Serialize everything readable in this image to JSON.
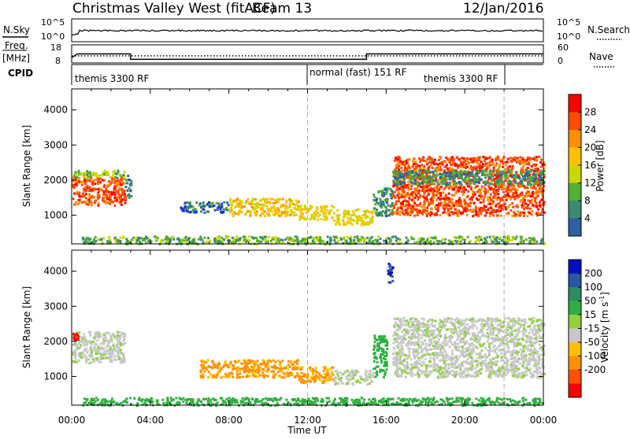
{
  "header": {
    "station": "Christmas Valley West (fitACF)",
    "beam": "Beam 13",
    "date": "12/Jan/2016"
  },
  "nsky_panel": {
    "left_label": "N.Sky",
    "left_ticks": [
      "10^5",
      "10^0"
    ],
    "right_ticks": [
      "10^5",
      "10^0"
    ],
    "right_label": "N.Search"
  },
  "freq_panel": {
    "left_label_line1": "Freq.",
    "left_label_line2": "[MHz]",
    "left_ticks": [
      "18",
      "8"
    ],
    "right_ticks": [
      "60",
      "0"
    ],
    "right_label": "Nave"
  },
  "cpid": {
    "label": "CPID",
    "segments": [
      "themis 3300 RF",
      "normal (fast) 151 RF",
      "themis 3300 RF"
    ]
  },
  "axes": {
    "ylabel": "Slant Range [km]",
    "xlabel": "Time UT",
    "xticks": [
      "00:00",
      "04:00",
      "08:00",
      "12:00",
      "16:00",
      "20:00",
      "00:00"
    ],
    "yticks": [
      "1000",
      "2000",
      "3000",
      "4000"
    ]
  },
  "colorbars": {
    "power": {
      "label": "Power [dB]",
      "ticks": [
        "28",
        "24",
        "20",
        "16",
        "12",
        "8",
        "4"
      ],
      "colors": [
        "#ff0000",
        "#ff4a00",
        "#ff9000",
        "#ffc000",
        "#c8d800",
        "#55b030",
        "#3a8c70",
        "#2e5fa0",
        "#1a2ad8",
        "#0000ff"
      ]
    },
    "velocity": {
      "label": "Velocity [m s",
      "label_sup": "-1",
      "label_end": "]",
      "ticks": [
        "200",
        "100",
        "50",
        "15",
        "-15",
        "-50",
        "-100",
        "-200"
      ],
      "colors": [
        "#0010c0",
        "#2a55a8",
        "#2e8c64",
        "#30b040",
        "#90d040",
        "#c8c8c8",
        "#ffc000",
        "#ff9000",
        "#ff5000",
        "#ff0000"
      ]
    }
  },
  "chart_data": {
    "type": "heatmap",
    "x_range_hours": [
      0,
      24
    ],
    "y_range_km": [
      180,
      4600
    ],
    "frequency_mhz": {
      "x_hours": [
        0,
        0.3,
        3.0,
        3.0,
        15.0,
        15.0,
        24
      ],
      "y": [
        11,
        13,
        13,
        10,
        10,
        13,
        13
      ]
    },
    "power_regions": [
      {
        "t0": 0.0,
        "t1": 2.7,
        "r0": 1300,
        "r1": 2100,
        "level_db": 28
      },
      {
        "t0": 0.0,
        "t1": 2.7,
        "r0": 2100,
        "r1": 2300,
        "level_db": 14
      },
      {
        "t0": 2.7,
        "t1": 3.0,
        "r0": 1500,
        "r1": 2200,
        "level_db": 10
      },
      {
        "t0": 5.5,
        "t1": 8.0,
        "r0": 1100,
        "r1": 1400,
        "level_db": 8
      },
      {
        "t0": 8.0,
        "t1": 11.5,
        "r0": 1000,
        "r1": 1500,
        "level_db": 20
      },
      {
        "t0": 11.5,
        "t1": 13.3,
        "r0": 900,
        "r1": 1300,
        "level_db": 18
      },
      {
        "t0": 13.3,
        "t1": 15.3,
        "r0": 750,
        "r1": 1200,
        "level_db": 18
      },
      {
        "t0": 15.3,
        "t1": 16.3,
        "r0": 1000,
        "r1": 1800,
        "level_db": 10
      },
      {
        "t0": 16.3,
        "t1": 24.0,
        "r0": 1000,
        "r1": 2700,
        "level_db": 28
      },
      {
        "t0": 16.3,
        "t1": 24.0,
        "r0": 1900,
        "r1": 2300,
        "level_db": 10
      },
      {
        "t0": 0.5,
        "t1": 24.0,
        "r0": 200,
        "r1": 420,
        "level_db": 12
      }
    ],
    "velocity_regions": [
      {
        "t0": 0.0,
        "t1": 2.7,
        "r0": 1400,
        "r1": 2300,
        "vel_ms": 0
      },
      {
        "t0": 0.0,
        "t1": 0.3,
        "r0": 2050,
        "r1": 2250,
        "vel_ms": -200
      },
      {
        "t0": 6.5,
        "t1": 11.5,
        "r0": 1000,
        "r1": 1500,
        "vel_ms": -60
      },
      {
        "t0": 11.5,
        "t1": 13.3,
        "r0": 850,
        "r1": 1300,
        "vel_ms": -60
      },
      {
        "t0": 13.3,
        "t1": 15.3,
        "r0": 800,
        "r1": 1200,
        "vel_ms": 0
      },
      {
        "t0": 15.3,
        "t1": 16.0,
        "r0": 1000,
        "r1": 2200,
        "vel_ms": 25
      },
      {
        "t0": 16.3,
        "t1": 24.0,
        "r0": 1000,
        "r1": 2700,
        "vel_ms": 0
      },
      {
        "t0": 16.0,
        "t1": 16.3,
        "r0": 3700,
        "r1": 4300,
        "vel_ms": 200
      },
      {
        "t0": 0.5,
        "t1": 24.0,
        "r0": 200,
        "r1": 420,
        "vel_ms": 25
      }
    ]
  }
}
